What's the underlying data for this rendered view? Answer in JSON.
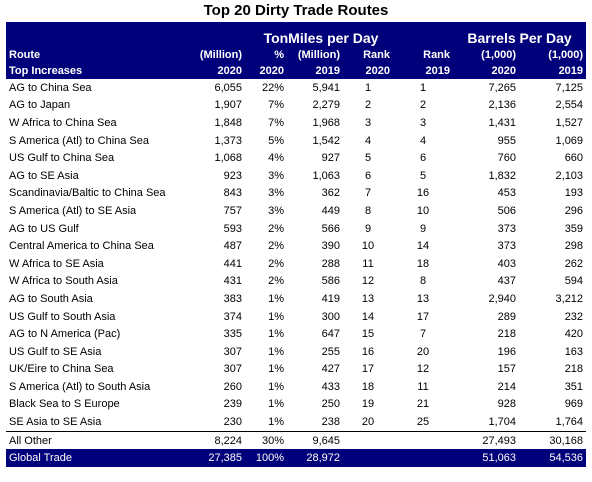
{
  "title": "Top 20 Dirty Trade Routes",
  "groups": {
    "tonmiles": "TonMiles per Day",
    "barrels": "Barrels Per Day"
  },
  "header_row1": {
    "route": "Route",
    "c1": "(Million)",
    "c2": "%",
    "c3": "(Million)",
    "c4": "Rank",
    "c5": "Rank",
    "c6": "(1,000)",
    "c7": "(1,000)"
  },
  "header_row2": {
    "route": "Top Increases",
    "c1": "2020",
    "c2": "2020",
    "c3": "2019",
    "c4": "2020",
    "c5": "2019",
    "c6": "2020",
    "c7": "2019"
  },
  "rows": [
    {
      "route": "AG to China Sea",
      "tm2020": "6,055",
      "pct": "22%",
      "tm2019": "5,941",
      "rank2020": "1",
      "rank2019": "1",
      "b2020": "7,265",
      "b2019": "7,125"
    },
    {
      "route": "AG to Japan",
      "tm2020": "1,907",
      "pct": "7%",
      "tm2019": "2,279",
      "rank2020": "2",
      "rank2019": "2",
      "b2020": "2,136",
      "b2019": "2,554"
    },
    {
      "route": "W Africa to China Sea",
      "tm2020": "1,848",
      "pct": "7%",
      "tm2019": "1,968",
      "rank2020": "3",
      "rank2019": "3",
      "b2020": "1,431",
      "b2019": "1,527"
    },
    {
      "route": "S America (Atl) to China Sea",
      "tm2020": "1,373",
      "pct": "5%",
      "tm2019": "1,542",
      "rank2020": "4",
      "rank2019": "4",
      "b2020": "955",
      "b2019": "1,069"
    },
    {
      "route": "US Gulf to China Sea",
      "tm2020": "1,068",
      "pct": "4%",
      "tm2019": "927",
      "rank2020": "5",
      "rank2019": "6",
      "b2020": "760",
      "b2019": "660"
    },
    {
      "route": "AG to SE Asia",
      "tm2020": "923",
      "pct": "3%",
      "tm2019": "1,063",
      "rank2020": "6",
      "rank2019": "5",
      "b2020": "1,832",
      "b2019": "2,103"
    },
    {
      "route": "Scandinavia/Baltic to China Sea",
      "tm2020": "843",
      "pct": "3%",
      "tm2019": "362",
      "rank2020": "7",
      "rank2019": "16",
      "b2020": "453",
      "b2019": "193"
    },
    {
      "route": "S America (Atl) to SE Asia",
      "tm2020": "757",
      "pct": "3%",
      "tm2019": "449",
      "rank2020": "8",
      "rank2019": "10",
      "b2020": "506",
      "b2019": "296"
    },
    {
      "route": "AG to US Gulf",
      "tm2020": "593",
      "pct": "2%",
      "tm2019": "566",
      "rank2020": "9",
      "rank2019": "9",
      "b2020": "373",
      "b2019": "359"
    },
    {
      "route": "Central America to China Sea",
      "tm2020": "487",
      "pct": "2%",
      "tm2019": "390",
      "rank2020": "10",
      "rank2019": "14",
      "b2020": "373",
      "b2019": "298"
    },
    {
      "route": "W Africa to SE Asia",
      "tm2020": "441",
      "pct": "2%",
      "tm2019": "288",
      "rank2020": "11",
      "rank2019": "18",
      "b2020": "403",
      "b2019": "262"
    },
    {
      "route": "W Africa to South Asia",
      "tm2020": "431",
      "pct": "2%",
      "tm2019": "586",
      "rank2020": "12",
      "rank2019": "8",
      "b2020": "437",
      "b2019": "594"
    },
    {
      "route": "AG to South Asia",
      "tm2020": "383",
      "pct": "1%",
      "tm2019": "419",
      "rank2020": "13",
      "rank2019": "13",
      "b2020": "2,940",
      "b2019": "3,212"
    },
    {
      "route": "US Gulf to South Asia",
      "tm2020": "374",
      "pct": "1%",
      "tm2019": "300",
      "rank2020": "14",
      "rank2019": "17",
      "b2020": "289",
      "b2019": "232"
    },
    {
      "route": "AG to N America (Pac)",
      "tm2020": "335",
      "pct": "1%",
      "tm2019": "647",
      "rank2020": "15",
      "rank2019": "7",
      "b2020": "218",
      "b2019": "420"
    },
    {
      "route": "US Gulf to SE Asia",
      "tm2020": "307",
      "pct": "1%",
      "tm2019": "255",
      "rank2020": "16",
      "rank2019": "20",
      "b2020": "196",
      "b2019": "163"
    },
    {
      "route": "UK/Eire to China Sea",
      "tm2020": "307",
      "pct": "1%",
      "tm2019": "427",
      "rank2020": "17",
      "rank2019": "12",
      "b2020": "157",
      "b2019": "218"
    },
    {
      "route": "S America (Atl) to South Asia",
      "tm2020": "260",
      "pct": "1%",
      "tm2019": "433",
      "rank2020": "18",
      "rank2019": "11",
      "b2020": "214",
      "b2019": "351"
    },
    {
      "route": "Black Sea to S Europe",
      "tm2020": "239",
      "pct": "1%",
      "tm2019": "250",
      "rank2020": "19",
      "rank2019": "21",
      "b2020": "928",
      "b2019": "969"
    },
    {
      "route": "SE Asia to SE Asia",
      "tm2020": "230",
      "pct": "1%",
      "tm2019": "238",
      "rank2020": "20",
      "rank2019": "25",
      "b2020": "1,704",
      "b2019": "1,764"
    }
  ],
  "all_other": {
    "route": "All Other",
    "tm2020": "8,224",
    "pct": "30%",
    "tm2019": "9,645",
    "b2020": "27,493",
    "b2019": "30,168"
  },
  "global": {
    "route": "Global Trade",
    "tm2020": "27,385",
    "pct": "100%",
    "tm2019": "28,972",
    "b2020": "51,063",
    "b2019": "54,536"
  },
  "colors": {
    "header_bg": "#00007a",
    "header_text": "#ffffff"
  }
}
